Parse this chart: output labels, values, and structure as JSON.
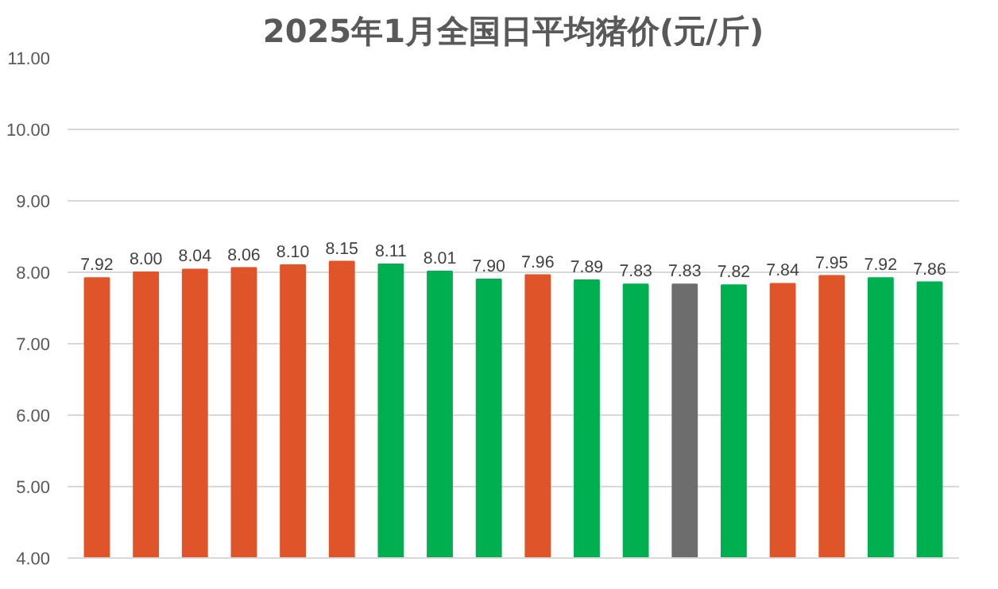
{
  "chart_data": {
    "type": "bar",
    "title": "2025年1月全国日平均猪价(元/斤)",
    "categories": [
      null,
      null,
      null,
      null,
      null,
      null,
      null,
      null,
      null,
      null,
      null,
      null,
      null,
      null,
      null,
      null,
      null,
      null
    ],
    "values": [
      7.92,
      8.0,
      8.04,
      8.06,
      8.1,
      8.15,
      8.11,
      8.01,
      7.9,
      7.96,
      7.89,
      7.83,
      7.83,
      7.82,
      7.84,
      7.95,
      7.92,
      7.86
    ],
    "value_labels": [
      "7.92",
      "8.00",
      "8.04",
      "8.06",
      "8.10",
      "8.15",
      "8.11",
      "8.01",
      "7.90",
      "7.96",
      "7.89",
      "7.83",
      "7.83",
      "7.82",
      "7.84",
      "7.95",
      "7.92",
      "7.86"
    ],
    "colors": [
      "#e0542a",
      "#e0542a",
      "#e0542a",
      "#e0542a",
      "#e0542a",
      "#e0542a",
      "#00b050",
      "#00b050",
      "#00b050",
      "#e0542a",
      "#00b050",
      "#00b050",
      "#6d6d6d",
      "#00b050",
      "#e0542a",
      "#e0542a",
      "#00b050",
      "#00b050"
    ],
    "ylim": [
      4,
      11
    ],
    "yticks": [
      {
        "value": 4,
        "label": "4.00"
      },
      {
        "value": 5,
        "label": "5.00"
      },
      {
        "value": 6,
        "label": "6.00"
      },
      {
        "value": 7,
        "label": "7.00"
      },
      {
        "value": 8,
        "label": "8.00"
      },
      {
        "value": 9,
        "label": "9.00"
      },
      {
        "value": 10,
        "label": "10.00"
      },
      {
        "value": 11,
        "label": "11.00"
      }
    ],
    "grid": "y",
    "tick_labels": "y"
  }
}
